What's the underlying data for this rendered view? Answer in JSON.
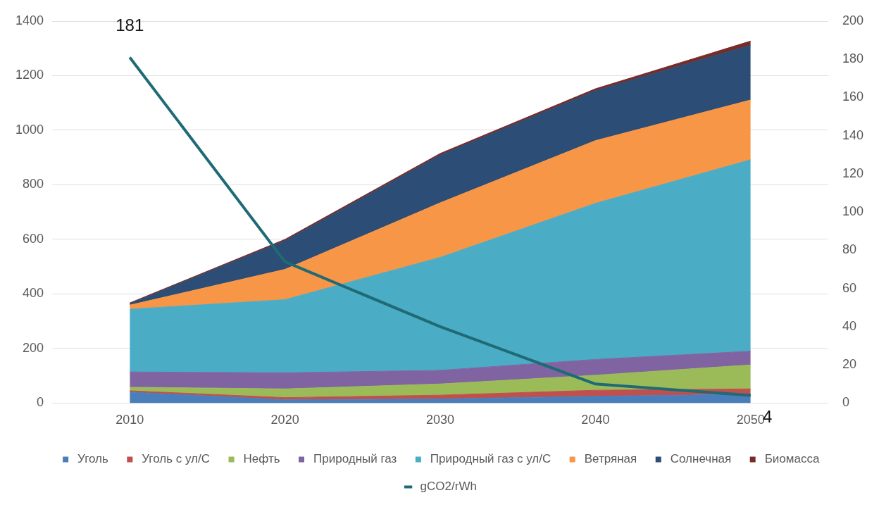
{
  "chart_data": {
    "type": "area",
    "stacked": true,
    "categories": [
      "2010",
      "2020",
      "2030",
      "2040",
      "2050"
    ],
    "series": [
      {
        "name": "Уголь",
        "color": "#4a7ebb",
        "values": [
          40,
          12,
          15,
          25,
          32
        ]
      },
      {
        "name": "Уголь с ул/С",
        "color": "#c0504d",
        "values": [
          5,
          8,
          14,
          22,
          20
        ]
      },
      {
        "name": "Нефть",
        "color": "#9bbb59",
        "values": [
          13,
          32,
          41,
          55,
          88
        ]
      },
      {
        "name": "Природный газ",
        "color": "#8064a2",
        "values": [
          56,
          59,
          50,
          58,
          50
        ]
      },
      {
        "name": "Природный газ с ул/С",
        "color": "#4bacc6",
        "values": [
          230,
          268,
          414,
          572,
          702
        ]
      },
      {
        "name": "Ветряная",
        "color": "#f79646",
        "values": [
          15,
          111,
          200,
          230,
          219
        ]
      },
      {
        "name": "Солнечная",
        "color": "#2c4d75",
        "values": [
          5,
          105,
          175,
          183,
          201
        ]
      },
      {
        "name": "Биомасса",
        "color": "#772c2a",
        "values": [
          3,
          5,
          6,
          7,
          15
        ]
      },
      {
        "name": "gCO2/rWh",
        "type": "line",
        "axis": "y2",
        "color": "#1f6b75",
        "values": [
          181,
          74,
          40,
          10,
          4
        ],
        "value_labels": [
          "181",
          null,
          null,
          null,
          "4"
        ]
      }
    ],
    "ylim": [
      0,
      1400
    ],
    "yticks": [
      0,
      200,
      400,
      600,
      800,
      1000,
      1200,
      1400
    ],
    "y2lim": [
      0,
      200
    ],
    "y2ticks": [
      0,
      20,
      40,
      60,
      80,
      100,
      120,
      140,
      160,
      180,
      200
    ],
    "grid": "y",
    "legend": "bottom",
    "marker": "none"
  }
}
